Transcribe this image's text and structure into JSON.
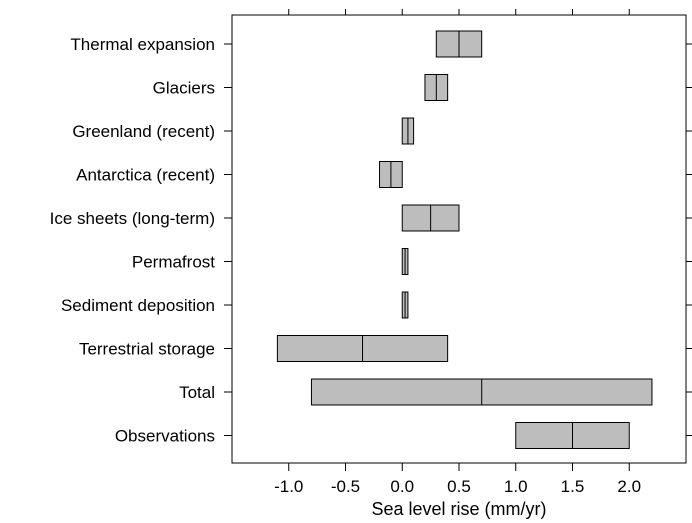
{
  "chart_data": {
    "type": "range-bar",
    "xlabel": "Sea level rise (mm/yr)",
    "xlim": [
      -1.5,
      2.5
    ],
    "xticks": [
      -1.0,
      -0.5,
      0.0,
      0.5,
      1.0,
      1.5,
      2.0
    ],
    "xtick_labels": [
      "-1.0",
      "-0.5",
      "0.0",
      "0.5",
      "1.0",
      "1.5",
      "2.0"
    ],
    "grid": false,
    "bar_color": "#bdbdbd",
    "categories": [
      "Thermal expansion",
      "Glaciers",
      "Greenland (recent)",
      "Antarctica (recent)",
      "Ice sheets (long-term)",
      "Permafrost",
      "Sediment deposition",
      "Terrestrial storage",
      "Total",
      "Observations"
    ],
    "ranges": [
      {
        "low": 0.3,
        "mid": 0.5,
        "high": 0.7
      },
      {
        "low": 0.2,
        "mid": 0.3,
        "high": 0.4
      },
      {
        "low": 0.0,
        "mid": 0.05,
        "high": 0.1
      },
      {
        "low": -0.2,
        "mid": -0.1,
        "high": 0.0
      },
      {
        "low": 0.0,
        "mid": 0.25,
        "high": 0.5
      },
      {
        "low": 0.0,
        "mid": 0.025,
        "high": 0.05
      },
      {
        "low": 0.0,
        "mid": 0.025,
        "high": 0.05
      },
      {
        "low": -1.1,
        "mid": -0.35,
        "high": 0.4
      },
      {
        "low": -0.8,
        "mid": 0.7,
        "high": 2.2
      },
      {
        "low": 1.0,
        "mid": 1.5,
        "high": 2.0
      }
    ]
  }
}
